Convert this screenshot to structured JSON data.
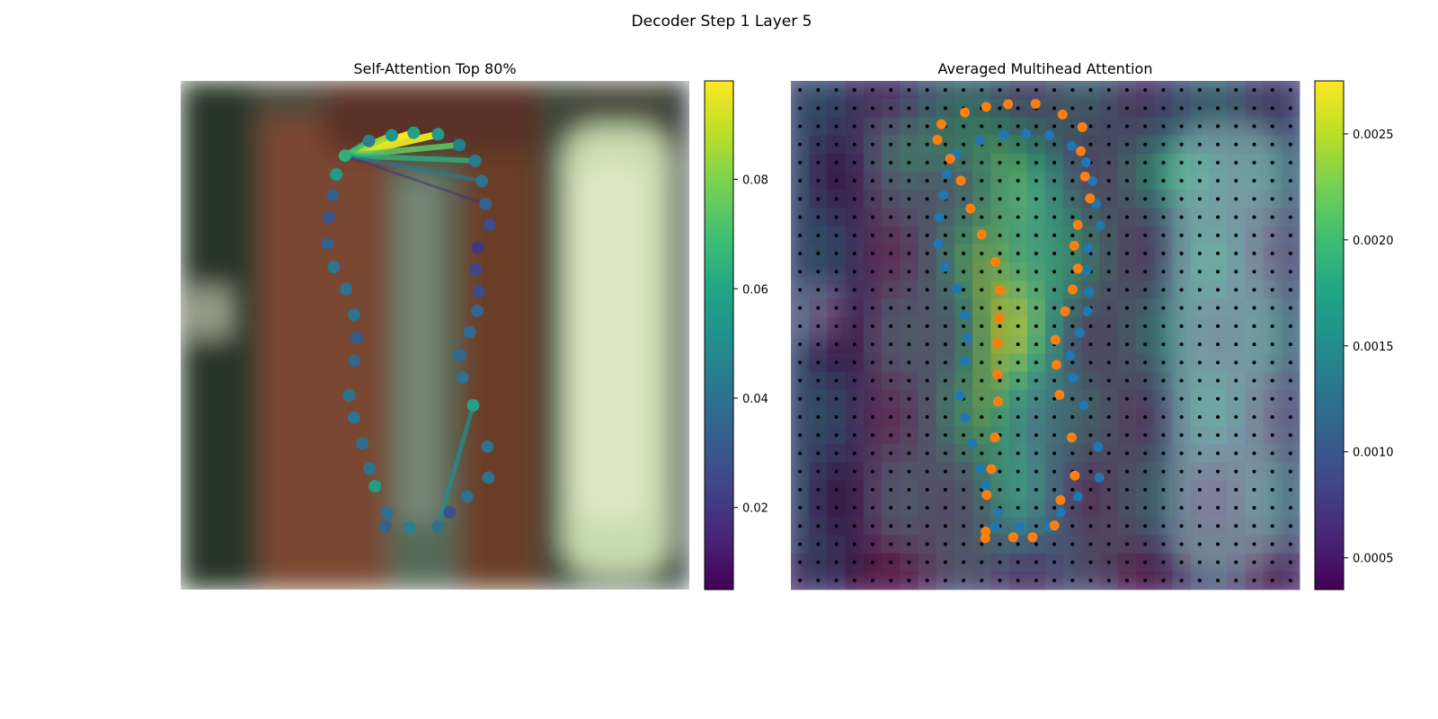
{
  "figure": {
    "suptitle": "Decoder Step 1 Layer 5"
  },
  "chart_data": [
    {
      "type": "scatter",
      "title": "Self-Attention Top 80%",
      "background": "blurred photo: dark red-brown pillar in the centre, pale green-white object on the right",
      "colormap": "viridis",
      "colorbar": {
        "min": 0.005,
        "max": 0.098,
        "ticks": [
          0.02,
          0.04,
          0.06,
          0.08
        ],
        "tick_labels": [
          "0.02",
          "0.04",
          "0.06",
          "0.08"
        ]
      },
      "xlim": [
        0,
        1
      ],
      "ylim": [
        0,
        1
      ],
      "points": [
        {
          "x": 0.323,
          "y": 0.147,
          "v": 0.064
        },
        {
          "x": 0.37,
          "y": 0.118,
          "v": 0.045
        },
        {
          "x": 0.415,
          "y": 0.107,
          "v": 0.053
        },
        {
          "x": 0.458,
          "y": 0.102,
          "v": 0.058
        },
        {
          "x": 0.506,
          "y": 0.105,
          "v": 0.055
        },
        {
          "x": 0.548,
          "y": 0.126,
          "v": 0.045
        },
        {
          "x": 0.579,
          "y": 0.157,
          "v": 0.043
        },
        {
          "x": 0.592,
          "y": 0.197,
          "v": 0.04
        },
        {
          "x": 0.599,
          "y": 0.242,
          "v": 0.034
        },
        {
          "x": 0.607,
          "y": 0.283,
          "v": 0.026
        },
        {
          "x": 0.584,
          "y": 0.328,
          "v": 0.02
        },
        {
          "x": 0.58,
          "y": 0.371,
          "v": 0.024
        },
        {
          "x": 0.586,
          "y": 0.414,
          "v": 0.026
        },
        {
          "x": 0.583,
          "y": 0.452,
          "v": 0.036
        },
        {
          "x": 0.568,
          "y": 0.494,
          "v": 0.038
        },
        {
          "x": 0.549,
          "y": 0.539,
          "v": 0.037
        },
        {
          "x": 0.554,
          "y": 0.583,
          "v": 0.04
        },
        {
          "x": 0.575,
          "y": 0.638,
          "v": 0.058
        },
        {
          "x": 0.603,
          "y": 0.719,
          "v": 0.04
        },
        {
          "x": 0.605,
          "y": 0.78,
          "v": 0.04
        },
        {
          "x": 0.563,
          "y": 0.817,
          "v": 0.04
        },
        {
          "x": 0.529,
          "y": 0.848,
          "v": 0.028
        },
        {
          "x": 0.506,
          "y": 0.876,
          "v": 0.04
        },
        {
          "x": 0.449,
          "y": 0.878,
          "v": 0.045
        },
        {
          "x": 0.402,
          "y": 0.876,
          "v": 0.034
        },
        {
          "x": 0.406,
          "y": 0.849,
          "v": 0.04
        },
        {
          "x": 0.382,
          "y": 0.797,
          "v": 0.056
        },
        {
          "x": 0.371,
          "y": 0.762,
          "v": 0.04
        },
        {
          "x": 0.357,
          "y": 0.713,
          "v": 0.038
        },
        {
          "x": 0.341,
          "y": 0.662,
          "v": 0.04
        },
        {
          "x": 0.331,
          "y": 0.618,
          "v": 0.04
        },
        {
          "x": 0.341,
          "y": 0.55,
          "v": 0.035
        },
        {
          "x": 0.346,
          "y": 0.505,
          "v": 0.032
        },
        {
          "x": 0.341,
          "y": 0.46,
          "v": 0.04
        },
        {
          "x": 0.325,
          "y": 0.409,
          "v": 0.04
        },
        {
          "x": 0.301,
          "y": 0.366,
          "v": 0.042
        },
        {
          "x": 0.289,
          "y": 0.32,
          "v": 0.033
        },
        {
          "x": 0.291,
          "y": 0.268,
          "v": 0.03
        },
        {
          "x": 0.299,
          "y": 0.225,
          "v": 0.033
        },
        {
          "x": 0.306,
          "y": 0.184,
          "v": 0.056
        }
      ],
      "links": [
        {
          "from": 0,
          "to": 3,
          "v": 0.098
        },
        {
          "from": 0,
          "to": 4,
          "v": 0.094
        },
        {
          "from": 0,
          "to": 2,
          "v": 0.085
        },
        {
          "from": 0,
          "to": 5,
          "v": 0.075
        },
        {
          "from": 0,
          "to": 1,
          "v": 0.068
        },
        {
          "from": 0,
          "to": 6,
          "v": 0.064
        },
        {
          "from": 0,
          "to": 7,
          "v": 0.042
        },
        {
          "from": 0,
          "to": 8,
          "v": 0.018
        },
        {
          "from": 17,
          "to": 22,
          "v": 0.05
        }
      ]
    },
    {
      "type": "heatmap",
      "title": "Averaged Multihead Attention",
      "background": "same blurred photo, overlaid by a semi-transparent 28x28 attention heatmap",
      "colormap": "viridis",
      "colorbar": {
        "min": 0.00035,
        "max": 0.00275,
        "ticks": [
          0.0005,
          0.001,
          0.0015,
          0.002,
          0.0025
        ],
        "tick_labels": [
          "0.0005",
          "0.0010",
          "0.0015",
          "0.0020",
          "0.0025"
        ]
      },
      "grid_size": 28,
      "grid_dots": true,
      "series": [
        {
          "color": "#1f77b4",
          "points": [
            {
              "x": 0.325,
              "y": 0.144
            },
            {
              "x": 0.372,
              "y": 0.117
            },
            {
              "x": 0.419,
              "y": 0.106
            },
            {
              "x": 0.462,
              "y": 0.104
            },
            {
              "x": 0.508,
              "y": 0.107
            },
            {
              "x": 0.552,
              "y": 0.128
            },
            {
              "x": 0.58,
              "y": 0.16
            },
            {
              "x": 0.593,
              "y": 0.197
            },
            {
              "x": 0.6,
              "y": 0.242
            },
            {
              "x": 0.608,
              "y": 0.284
            },
            {
              "x": 0.584,
              "y": 0.329
            },
            {
              "x": 0.581,
              "y": 0.372
            },
            {
              "x": 0.586,
              "y": 0.415
            },
            {
              "x": 0.583,
              "y": 0.453
            },
            {
              "x": 0.568,
              "y": 0.495
            },
            {
              "x": 0.549,
              "y": 0.54
            },
            {
              "x": 0.555,
              "y": 0.584
            },
            {
              "x": 0.576,
              "y": 0.638
            },
            {
              "x": 0.604,
              "y": 0.719
            },
            {
              "x": 0.606,
              "y": 0.78
            },
            {
              "x": 0.564,
              "y": 0.817
            },
            {
              "x": 0.53,
              "y": 0.848
            },
            {
              "x": 0.507,
              "y": 0.876
            },
            {
              "x": 0.45,
              "y": 0.877
            },
            {
              "x": 0.401,
              "y": 0.876
            },
            {
              "x": 0.407,
              "y": 0.849
            },
            {
              "x": 0.383,
              "y": 0.796
            },
            {
              "x": 0.372,
              "y": 0.763
            },
            {
              "x": 0.357,
              "y": 0.713
            },
            {
              "x": 0.342,
              "y": 0.662
            },
            {
              "x": 0.332,
              "y": 0.619
            },
            {
              "x": 0.342,
              "y": 0.551
            },
            {
              "x": 0.347,
              "y": 0.505
            },
            {
              "x": 0.342,
              "y": 0.46
            },
            {
              "x": 0.326,
              "y": 0.409
            },
            {
              "x": 0.302,
              "y": 0.366
            },
            {
              "x": 0.29,
              "y": 0.32
            },
            {
              "x": 0.292,
              "y": 0.268
            },
            {
              "x": 0.3,
              "y": 0.225
            },
            {
              "x": 0.307,
              "y": 0.184
            }
          ]
        },
        {
          "color": "#ff7f0e",
          "points": [
            {
              "x": 0.288,
              "y": 0.116
            },
            {
              "x": 0.296,
              "y": 0.085
            },
            {
              "x": 0.342,
              "y": 0.062
            },
            {
              "x": 0.384,
              "y": 0.051
            },
            {
              "x": 0.427,
              "y": 0.046
            },
            {
              "x": 0.481,
              "y": 0.045
            },
            {
              "x": 0.534,
              "y": 0.066
            },
            {
              "x": 0.573,
              "y": 0.091
            },
            {
              "x": 0.57,
              "y": 0.138
            },
            {
              "x": 0.578,
              "y": 0.188
            },
            {
              "x": 0.588,
              "y": 0.231
            },
            {
              "x": 0.564,
              "y": 0.283
            },
            {
              "x": 0.557,
              "y": 0.324
            },
            {
              "x": 0.564,
              "y": 0.369
            },
            {
              "x": 0.554,
              "y": 0.41
            },
            {
              "x": 0.539,
              "y": 0.453
            },
            {
              "x": 0.52,
              "y": 0.509
            },
            {
              "x": 0.522,
              "y": 0.558
            },
            {
              "x": 0.528,
              "y": 0.617
            },
            {
              "x": 0.552,
              "y": 0.701
            },
            {
              "x": 0.558,
              "y": 0.776
            },
            {
              "x": 0.53,
              "y": 0.824
            },
            {
              "x": 0.518,
              "y": 0.874
            },
            {
              "x": 0.475,
              "y": 0.897
            },
            {
              "x": 0.437,
              "y": 0.897
            },
            {
              "x": 0.382,
              "y": 0.899
            },
            {
              "x": 0.383,
              "y": 0.886
            },
            {
              "x": 0.385,
              "y": 0.814
            },
            {
              "x": 0.394,
              "y": 0.763
            },
            {
              "x": 0.401,
              "y": 0.701
            },
            {
              "x": 0.407,
              "y": 0.63
            },
            {
              "x": 0.406,
              "y": 0.577
            },
            {
              "x": 0.406,
              "y": 0.515
            },
            {
              "x": 0.41,
              "y": 0.466
            },
            {
              "x": 0.411,
              "y": 0.411
            },
            {
              "x": 0.402,
              "y": 0.356
            },
            {
              "x": 0.375,
              "y": 0.302
            },
            {
              "x": 0.353,
              "y": 0.251
            },
            {
              "x": 0.334,
              "y": 0.196
            },
            {
              "x": 0.313,
              "y": 0.153
            }
          ]
        }
      ]
    }
  ]
}
